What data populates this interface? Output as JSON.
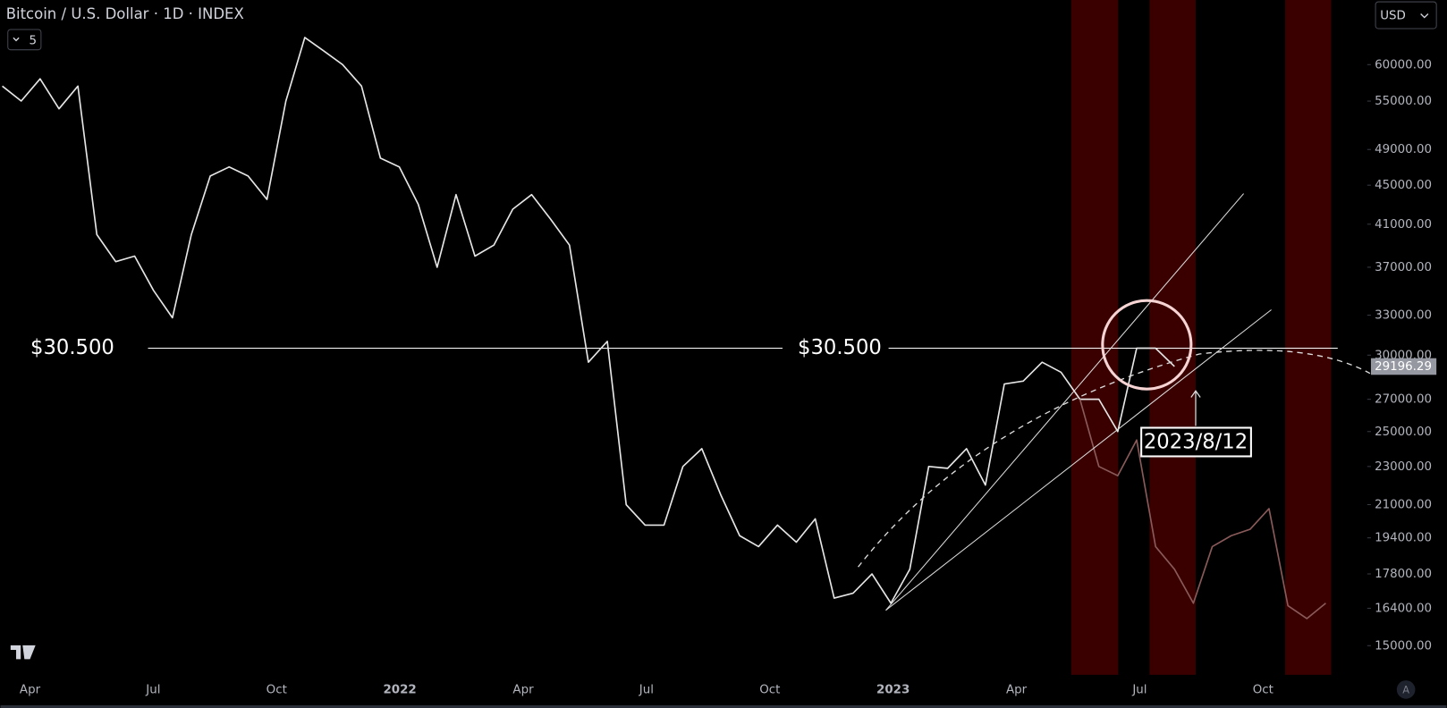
{
  "header": {
    "title": "Bitcoin / U.S. Dollar · 1D · INDEX",
    "indicators": "5",
    "currency": "USD",
    "scale_mode": "A"
  },
  "chart_data": {
    "type": "line",
    "log_scale": true,
    "ylim": [
      13900,
      70000
    ],
    "yticks": [
      {
        "value": 15000,
        "label": "15000.00"
      },
      {
        "value": 16400,
        "label": "16400.00"
      },
      {
        "value": 17800,
        "label": "17800.00"
      },
      {
        "value": 19400,
        "label": "19400.00"
      },
      {
        "value": 21000,
        "label": "21000.00"
      },
      {
        "value": 23000,
        "label": "23000.00"
      },
      {
        "value": 25000,
        "label": "25000.00"
      },
      {
        "value": 27000,
        "label": "27000.00"
      },
      {
        "value": 30000,
        "label": "30000.00"
      },
      {
        "value": 33000,
        "label": "33000.00"
      },
      {
        "value": 37000,
        "label": "37000.00"
      },
      {
        "value": 41000,
        "label": "41000.00"
      },
      {
        "value": 45000,
        "label": "45000.00"
      },
      {
        "value": 49000,
        "label": "49000.00"
      },
      {
        "value": 55000,
        "label": "55000.00"
      },
      {
        "value": 60000,
        "label": "60000.00"
      }
    ],
    "xticks": [
      "Apr",
      "Jul",
      "Oct",
      "2022",
      "Apr",
      "Jul",
      "Oct",
      "2023",
      "Apr",
      "Jul",
      "Oct"
    ],
    "series": [
      {
        "color": "#e6e6e6",
        "values": [
          57000,
          55000,
          58000,
          54000,
          57000,
          40000,
          37500,
          38000,
          35000,
          32800,
          40000,
          46000,
          47000,
          46000,
          43500,
          55000,
          64000,
          62000,
          60000,
          57000,
          48000,
          47000,
          43000,
          37000,
          44000,
          38000,
          39000,
          42500,
          44000,
          41500,
          39000,
          29500,
          31000,
          21000,
          20000,
          20000,
          23000,
          24000,
          21500,
          19500,
          19000,
          20000,
          19200,
          20300,
          16800,
          17000,
          17800,
          16600,
          18000,
          23000,
          22900,
          24000,
          22000,
          28000,
          28200,
          29500,
          28800,
          27000,
          27000,
          25000,
          30500,
          30500,
          29200,
          null,
          null,
          null,
          null,
          null,
          null,
          null,
          null
        ]
      },
      {
        "color": "#8a5a5a",
        "values": [
          null,
          null,
          null,
          null,
          null,
          null,
          null,
          null,
          null,
          null,
          null,
          null,
          null,
          null,
          null,
          null,
          null,
          null,
          null,
          null,
          null,
          null,
          null,
          null,
          null,
          null,
          null,
          null,
          null,
          null,
          null,
          null,
          null,
          null,
          null,
          null,
          null,
          null,
          null,
          null,
          null,
          null,
          null,
          null,
          null,
          null,
          null,
          null,
          null,
          null,
          null,
          null,
          null,
          null,
          null,
          null,
          null,
          27000,
          23000,
          22500,
          24500,
          19000,
          18000,
          16600,
          19000,
          19500,
          19800,
          20800,
          16500,
          16000,
          16600
        ]
      }
    ],
    "hline": {
      "value": 30500,
      "labels": [
        "$30.500",
        "$30.500"
      ]
    },
    "last_price": {
      "value": 29196.29,
      "label": "29196.29"
    },
    "annotation": "2023/8/12"
  }
}
